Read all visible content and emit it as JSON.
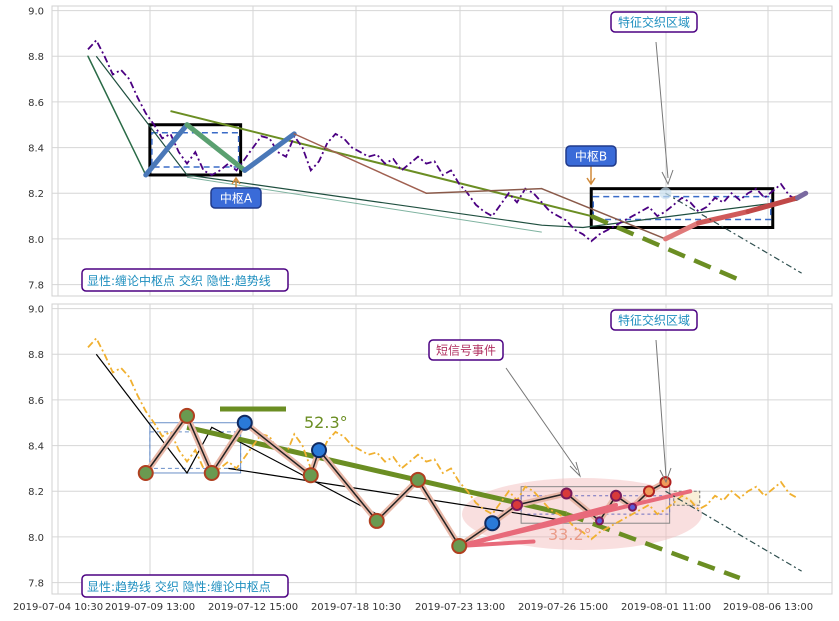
{
  "chart_data": [
    {
      "type": "line",
      "panel": "top",
      "ylim": [
        7.75,
        9.02
      ],
      "yticks": [
        "9.0",
        "8.8",
        "8.6",
        "8.4",
        "8.2",
        "8.0",
        "7.8"
      ],
      "grid": true,
      "legend_box": "显性:缠论中枢点 交织 隐性:趋势线",
      "annotations": {
        "zs_a": "中枢A",
        "zs_b": "中枢B",
        "feature": "特征交织区域"
      },
      "price": [
        8.83,
        8.87,
        8.8,
        8.72,
        8.74,
        8.7,
        8.62,
        8.55,
        8.5,
        8.44,
        8.46,
        8.38,
        8.33,
        8.38,
        8.3,
        8.28,
        8.3,
        8.33,
        8.3,
        8.35,
        8.4,
        8.45,
        8.44,
        8.38,
        8.36,
        8.45,
        8.4,
        8.3,
        8.34,
        8.42,
        8.46,
        8.44,
        8.4,
        8.38,
        8.36,
        8.37,
        8.33,
        8.35,
        8.3,
        8.33,
        8.36,
        8.33,
        8.34,
        8.28,
        8.3,
        8.24,
        8.2,
        8.15,
        8.12,
        8.1,
        8.15,
        8.2,
        8.16,
        8.22,
        8.2,
        8.16,
        8.12,
        8.1,
        8.08,
        8.04,
        8.02,
        7.99,
        8.02,
        8.04,
        8.06,
        8.08,
        8.1,
        8.12,
        8.14,
        8.1,
        8.12,
        8.15,
        8.18,
        8.16,
        8.12,
        8.14,
        8.18,
        8.16,
        8.2,
        8.17,
        8.2,
        8.22,
        8.18,
        8.21,
        8.24,
        8.19,
        8.17
      ],
      "bi": [
        [
          0,
          8.8
        ],
        [
          7,
          8.28
        ],
        [
          12,
          8.5
        ],
        [
          19,
          8.3
        ],
        [
          25,
          8.46
        ],
        [
          41,
          8.2
        ],
        [
          55,
          8.22
        ],
        [
          70,
          8.0
        ],
        [
          74,
          8.07
        ],
        [
          80,
          8.12
        ],
        [
          86,
          8.18
        ],
        [
          87,
          8.2
        ]
      ],
      "trend_upper": [
        [
          10,
          8.56
        ],
        [
          61,
          8.1
        ],
        [
          79,
          7.82
        ]
      ],
      "zhongshu": [
        {
          "x0": 7.5,
          "x1": 18.5,
          "y0": 8.28,
          "y1": 8.5
        },
        {
          "x0": 61,
          "x1": 83,
          "y0": 8.05,
          "y1": 8.22
        }
      ]
    },
    {
      "type": "line",
      "panel": "bottom",
      "ylim": [
        7.75,
        9.02
      ],
      "yticks": [
        "9.0",
        "8.8",
        "8.6",
        "8.4",
        "8.2",
        "8.0",
        "7.8"
      ],
      "grid": true,
      "legend_box": "显性:趋势线 交织 隐性:缠论中枢点",
      "annotations": {
        "short_signal": "短信号事件",
        "feature": "特征交织区域",
        "angle_1": "52.3°",
        "angle_2": "33.2°"
      },
      "price": [
        8.83,
        8.87,
        8.8,
        8.72,
        8.74,
        8.7,
        8.62,
        8.55,
        8.5,
        8.44,
        8.46,
        8.38,
        8.33,
        8.38,
        8.3,
        8.28,
        8.3,
        8.33,
        8.3,
        8.35,
        8.4,
        8.45,
        8.44,
        8.38,
        8.36,
        8.45,
        8.4,
        8.3,
        8.34,
        8.42,
        8.46,
        8.44,
        8.4,
        8.38,
        8.36,
        8.37,
        8.33,
        8.35,
        8.3,
        8.33,
        8.36,
        8.33,
        8.34,
        8.28,
        8.3,
        8.24,
        8.2,
        8.15,
        8.12,
        8.1,
        8.15,
        8.2,
        8.16,
        8.22,
        8.2,
        8.16,
        8.12,
        8.1,
        8.08,
        8.04,
        8.02,
        7.99,
        8.02,
        8.04,
        8.06,
        8.08,
        8.1,
        8.12,
        8.14,
        8.1,
        8.12,
        8.15,
        8.18,
        8.16,
        8.12,
        8.14,
        8.18,
        8.16,
        8.2,
        8.17,
        8.2,
        8.22,
        8.18,
        8.21,
        8.24,
        8.19,
        8.17
      ],
      "points": [
        [
          7,
          8.28
        ],
        [
          12,
          8.53
        ],
        [
          15,
          8.28
        ],
        [
          19,
          8.5
        ],
        [
          27,
          8.27
        ],
        [
          28,
          8.38
        ],
        [
          35,
          8.07
        ],
        [
          40,
          8.25
        ],
        [
          45,
          7.96
        ],
        [
          49,
          8.06
        ],
        [
          52,
          8.14
        ],
        [
          58,
          8.19
        ],
        [
          62,
          8.07
        ],
        [
          64,
          8.18
        ],
        [
          66,
          8.13
        ],
        [
          68,
          8.2
        ],
        [
          70,
          8.24
        ]
      ],
      "trend_upper": [
        [
          12,
          8.48
        ],
        [
          58,
          8.1
        ],
        [
          79,
          7.82
        ]
      ]
    }
  ],
  "x_axis": {
    "ticks": [
      "2019-07-04 10:30",
      "2019-07-09 13:00",
      "2019-07-12 15:00",
      "2019-07-18 10:30",
      "2019-07-23 13:00",
      "2019-07-26 15:00",
      "2019-08-01 11:00",
      "2019-08-06 13:00"
    ]
  },
  "colors": {
    "price_top": "#4b0082",
    "price_bottom": "#f0b030",
    "trend": "#6b8e23",
    "zs_box": "#000000",
    "zs_dash": "#3a6bc7",
    "label_border": "#4b0082",
    "label_text": "#1f8fbf"
  }
}
